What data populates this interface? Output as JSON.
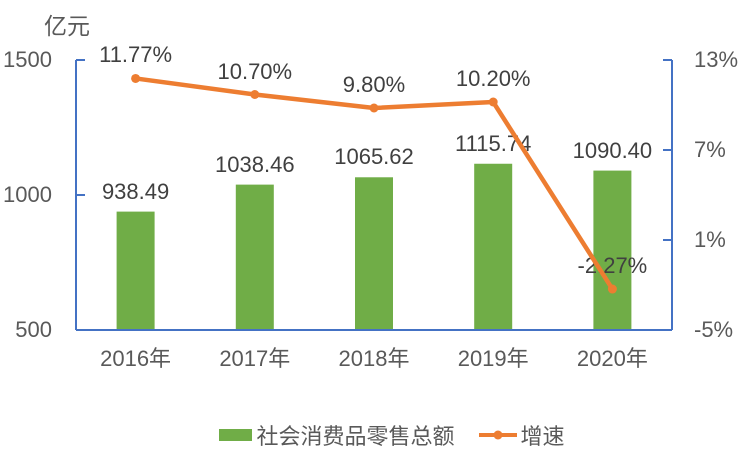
{
  "chart_data": {
    "type": "bar+line",
    "categories": [
      "2016年",
      "2017年",
      "2018年",
      "2019年",
      "2020年"
    ],
    "series": [
      {
        "name": "社会消费品零售总额",
        "type": "bar",
        "axis": "left",
        "color": "#70AD47",
        "values": [
          938.49,
          1038.46,
          1065.62,
          1115.74,
          1090.4
        ],
        "labels": [
          "938.49",
          "1038.46",
          "1065.62",
          "1115.74",
          "1090.40"
        ]
      },
      {
        "name": "增速",
        "type": "line",
        "axis": "right",
        "color": "#ED7D31",
        "values": [
          11.77,
          10.7,
          9.8,
          10.2,
          -2.27
        ],
        "labels": [
          "11.77%",
          "10.70%",
          "9.80%",
          "10.20%",
          "-2.27%"
        ]
      }
    ],
    "left_axis": {
      "title": "亿元",
      "min": 500,
      "max": 1500,
      "tick_values": [
        1500,
        1000,
        500
      ],
      "tick_labels": [
        "1500",
        "1000",
        "500"
      ]
    },
    "right_axis": {
      "min": -5,
      "max": 13,
      "tick_values": [
        13,
        7,
        1,
        -5
      ],
      "tick_labels": [
        "13%",
        "7%",
        "1%",
        "-5%"
      ]
    },
    "legend_position": "bottom",
    "grid": false,
    "colors": {
      "bar": "#70AD47",
      "line": "#ED7D31",
      "axis": "#4472C4",
      "data_label": "#404040",
      "axis_text": "#595959"
    }
  }
}
